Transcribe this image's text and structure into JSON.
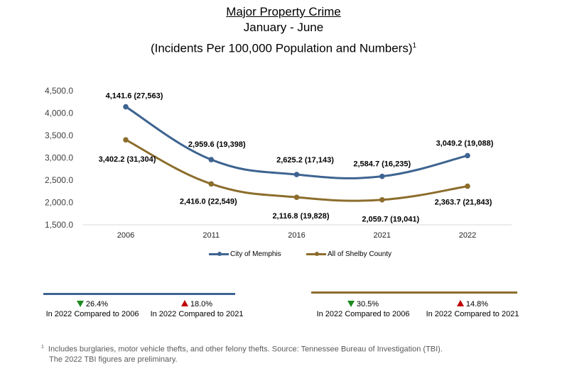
{
  "chart_data": {
    "type": "line",
    "title": "Major Property Crime",
    "subtitle": "January - June",
    "subtitle2": "(Incidents Per 100,000 Population and Numbers)",
    "subtitle2_footnote_marker": "1",
    "categories": [
      "2006",
      "2011",
      "2016",
      "2021",
      "2022"
    ],
    "ylim": [
      1500,
      4500
    ],
    "yticks": [
      "1,500.0",
      "2,000.0",
      "2,500.0",
      "3,000.0",
      "3,500.0",
      "4,000.0",
      "4,500.0"
    ],
    "ytick_values": [
      1500,
      2000,
      2500,
      3000,
      3500,
      4000,
      4500
    ],
    "grid": false,
    "legend_position": "bottom",
    "series": [
      {
        "name": "City of Memphis",
        "color": "#3e6491",
        "values": [
          4141.6,
          2959.6,
          2625.2,
          2584.7,
          3049.2
        ],
        "counts": [
          27563,
          19398,
          17143,
          16235,
          19088
        ],
        "labels": [
          "4,141.6 (27,563)",
          "2,959.6 (19,398)",
          "2,625.2 (17,143)",
          "2,584.7  (16,235)",
          "3,049.2  (19,088)"
        ]
      },
      {
        "name": "All of Shelby County",
        "color": "#8c6d2c",
        "values": [
          3402.2,
          2416.0,
          2116.8,
          2059.7,
          2363.7
        ],
        "counts": [
          31304,
          22549,
          19828,
          19041,
          21843
        ],
        "labels": [
          "3,402.2 (31,304)",
          "2,416.0 (22,549)",
          "2,116.8 (19,828)",
          "2,059.7  (19,041)",
          "2,363.7  (21,843)"
        ]
      }
    ]
  },
  "summary": {
    "memphis": {
      "color": "#3e6491",
      "vs_2006": {
        "direction": "down",
        "value": "26.4%",
        "label": "In 2022 Compared to 2006"
      },
      "vs_2021": {
        "direction": "up",
        "value": "18.0%",
        "label": "In 2022 Compared to 2021"
      }
    },
    "shelby": {
      "color": "#8c6d2c",
      "vs_2006": {
        "direction": "down",
        "value": "30.5%",
        "label": "In 2022 Compared to 2006"
      },
      "vs_2021": {
        "direction": "up",
        "value": "14.8%",
        "label": "In 2022 Compared to 2021"
      }
    }
  },
  "footnote": {
    "marker": "1",
    "line1": "Includes burglaries, motor vehicle thefts, and other felony thefts.  Source: Tennessee Bureau of Investigation (TBI).",
    "line2": "The 2022 TBI figures are preliminary."
  }
}
